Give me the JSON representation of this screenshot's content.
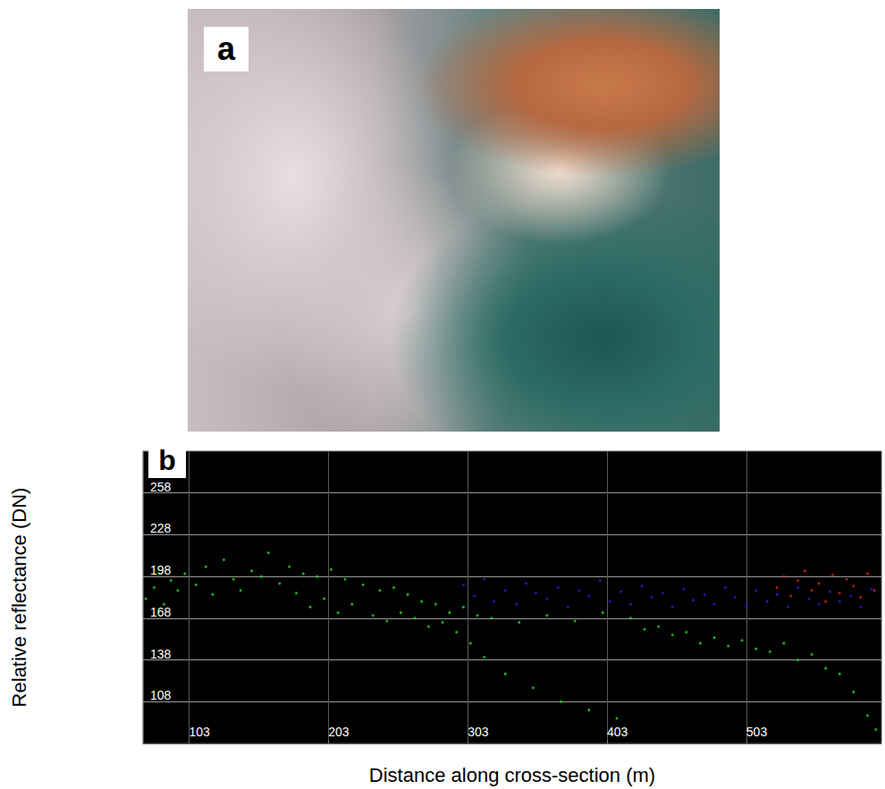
{
  "image": {
    "title": "a"
  },
  "chart_data": {
    "type": "scatter",
    "title": "b",
    "x_label": "Distance along cross-section (m)",
    "y_label": "Relative reflectance (DN)",
    "xlim": [
      70,
      600
    ],
    "xticks": [
      103,
      203,
      303,
      403,
      503
    ],
    "ylim": [
      78,
      288
    ],
    "yticks": [
      108,
      138,
      168,
      198,
      228,
      258
    ],
    "grid": true,
    "series": [
      {
        "color": "#22dd22",
        "x": [
          72,
          78,
          85,
          90,
          95,
          100,
          108,
          115,
          120,
          128,
          135,
          140,
          148,
          155,
          160,
          168,
          175,
          180,
          185,
          190,
          195,
          200,
          205,
          210,
          215,
          220,
          228,
          235,
          240,
          245,
          250,
          255,
          260,
          265,
          270,
          275,
          280,
          285,
          290,
          295,
          300,
          305,
          310,
          315,
          320,
          330,
          340,
          350,
          360,
          370,
          380,
          390,
          400,
          410,
          420,
          430,
          440,
          450,
          460,
          470,
          480,
          490,
          500,
          510,
          520,
          530,
          540,
          550,
          560,
          570,
          580,
          590,
          596
        ],
        "values": [
          182,
          190,
          178,
          195,
          188,
          200,
          192,
          205,
          185,
          210,
          196,
          188,
          202,
          198,
          215,
          193,
          205,
          186,
          200,
          176,
          198,
          182,
          203,
          172,
          196,
          178,
          192,
          170,
          188,
          166,
          190,
          172,
          185,
          168,
          180,
          162,
          178,
          165,
          172,
          158,
          176,
          150,
          170,
          140,
          168,
          128,
          165,
          118,
          170,
          108,
          166,
          102,
          172,
          96,
          168,
          160,
          162,
          156,
          158,
          150,
          154,
          148,
          152,
          146,
          144,
          150,
          138,
          142,
          132,
          128,
          115,
          98,
          88
        ]
      },
      {
        "color": "#2222e0",
        "x": [
          300,
          308,
          315,
          322,
          330,
          338,
          345,
          352,
          360,
          368,
          375,
          383,
          390,
          398,
          405,
          413,
          420,
          428,
          435,
          443,
          450,
          458,
          465,
          473,
          480,
          488,
          495,
          503,
          510,
          518,
          525,
          533,
          540,
          548,
          555,
          563,
          570,
          578,
          585,
          593
        ],
        "values": [
          192,
          184,
          196,
          180,
          188,
          178,
          193,
          186,
          182,
          190,
          176,
          188,
          184,
          195,
          180,
          187,
          178,
          191,
          183,
          186,
          176,
          189,
          181,
          185,
          178,
          190,
          183,
          177,
          188,
          180,
          185,
          176,
          190,
          182,
          178,
          187,
          180,
          184,
          176,
          189
        ]
      },
      {
        "color": "#e02222",
        "x": [
          525,
          530,
          535,
          540,
          545,
          550,
          555,
          560,
          565,
          570,
          575,
          580,
          585,
          590,
          595
        ],
        "values": [
          190,
          198,
          184,
          195,
          202,
          188,
          193,
          180,
          199,
          186,
          196,
          191,
          183,
          200,
          188
        ]
      }
    ]
  }
}
